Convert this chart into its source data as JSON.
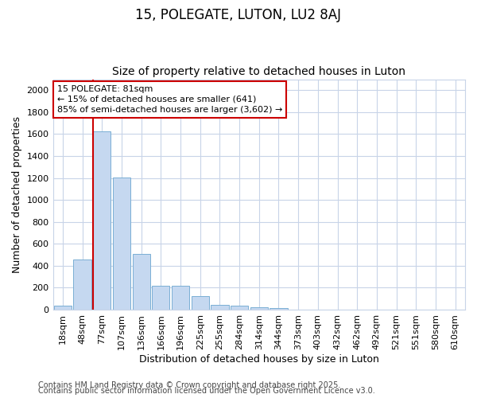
{
  "title1": "15, POLEGATE, LUTON, LU2 8AJ",
  "title2": "Size of property relative to detached houses in Luton",
  "xlabel": "Distribution of detached houses by size in Luton",
  "ylabel": "Number of detached properties",
  "categories": [
    "18sqm",
    "48sqm",
    "77sqm",
    "107sqm",
    "136sqm",
    "166sqm",
    "196sqm",
    "225sqm",
    "255sqm",
    "284sqm",
    "314sqm",
    "344sqm",
    "373sqm",
    "403sqm",
    "432sqm",
    "462sqm",
    "492sqm",
    "521sqm",
    "551sqm",
    "580sqm",
    "610sqm"
  ],
  "values": [
    35,
    460,
    1625,
    1205,
    505,
    220,
    220,
    120,
    45,
    38,
    20,
    12,
    0,
    0,
    0,
    0,
    0,
    0,
    0,
    0,
    0
  ],
  "bar_color": "#c5d8f0",
  "bar_edge_color": "#7aafd4",
  "vline_color": "#cc0000",
  "annotation_line1": "15 POLEGATE: 81sqm",
  "annotation_line2": "← 15% of detached houses are smaller (641)",
  "annotation_line3": "85% of semi-detached houses are larger (3,602) →",
  "annotation_box_color": "white",
  "annotation_box_edge": "#cc0000",
  "ylim": [
    0,
    2100
  ],
  "yticks": [
    0,
    200,
    400,
    600,
    800,
    1000,
    1200,
    1400,
    1600,
    1800,
    2000
  ],
  "footer1": "Contains HM Land Registry data © Crown copyright and database right 2025.",
  "footer2": "Contains public sector information licensed under the Open Government Licence v3.0.",
  "bg_color": "#ffffff",
  "plot_bg_color": "#ffffff",
  "grid_color": "#c8d4e8",
  "title1_fontsize": 12,
  "title2_fontsize": 10,
  "axis_label_fontsize": 9,
  "tick_fontsize": 8,
  "footer_fontsize": 7,
  "annotation_fontsize": 8
}
